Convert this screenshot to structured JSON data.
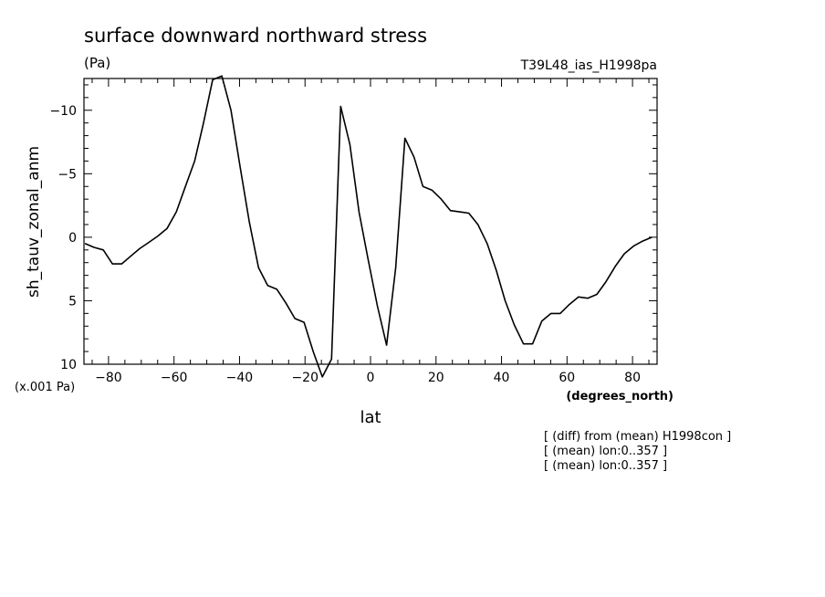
{
  "chart_data": {
    "type": "line",
    "title": "surface downward northward stress",
    "units_label": "(Pa)",
    "experiment_label": "T39L48_ias_H1998pa",
    "ylabel": "sh_tauv_zonal_anm",
    "xlabel": "lat",
    "x_units": "(degrees_north)",
    "y_scale_label": "(x.001 Pa)",
    "xlim": [
      -87.5,
      87.5
    ],
    "ylim": [
      10.0,
      -12.5
    ],
    "y_axis_inverted": true,
    "x_ticks": [
      -80,
      -60,
      -40,
      -20,
      0,
      20,
      40,
      60,
      80
    ],
    "x_tick_labels": [
      "−80",
      "−60",
      "−40",
      "−20",
      "0",
      "20",
      "40",
      "60",
      "80"
    ],
    "y_ticks": [
      -10,
      -5,
      0,
      5,
      10
    ],
    "y_tick_labels": [
      "−10",
      "−5",
      "0",
      "5",
      "10"
    ],
    "grid": false,
    "annotations": [
      "[ (diff) from (mean) H1998con ]",
      "[ (mean) lon:0..357 ]",
      "[ (mean) lon:0..357 ]"
    ],
    "series": [
      {
        "x": [
          -87.2,
          -84.4,
          -81.6,
          -78.8,
          -76.0,
          -73.3,
          -70.5,
          -67.7,
          -64.9,
          -62.1,
          -59.3,
          -56.5,
          -53.7,
          -51.0,
          -48.2,
          -45.4,
          -42.6,
          -39.8,
          -37.0,
          -34.2,
          -31.4,
          -28.6,
          -25.8,
          -23.1,
          -20.3,
          -17.5,
          -14.7,
          -11.9,
          -9.1,
          -6.3,
          -3.5,
          -0.7,
          2.1,
          4.9,
          7.7,
          10.5,
          13.3,
          16.0,
          18.8,
          21.6,
          24.4,
          27.2,
          30.0,
          32.8,
          35.6,
          38.4,
          41.1,
          43.9,
          46.7,
          49.5,
          52.3,
          55.1,
          57.9,
          60.7,
          63.5,
          66.3,
          69.1,
          71.9,
          74.7,
          77.5,
          80.3,
          83.1,
          85.9
        ],
        "y": [
          0.5,
          0.8,
          1.0,
          2.1,
          2.1,
          1.5,
          0.9,
          0.4,
          -0.1,
          -0.7,
          -2.0,
          -4.0,
          -6.0,
          -9.0,
          -12.4,
          -12.7,
          -10.0,
          -5.5,
          -1.2,
          2.4,
          3.8,
          4.1,
          5.2,
          6.4,
          6.7,
          9.0,
          11.0,
          9.6,
          -10.3,
          -7.3,
          -2.0,
          1.8,
          5.4,
          8.5,
          2.4,
          -7.8,
          -6.3,
          -4.0,
          -3.7,
          -3.0,
          -2.1,
          -2.0,
          -1.9,
          -1.0,
          0.5,
          2.6,
          5.0,
          6.9,
          8.4,
          8.4,
          6.6,
          6.0,
          6.0,
          5.3,
          4.7,
          4.8,
          4.5,
          3.5,
          2.3,
          1.3,
          0.7,
          0.3,
          0.0
        ]
      }
    ]
  }
}
